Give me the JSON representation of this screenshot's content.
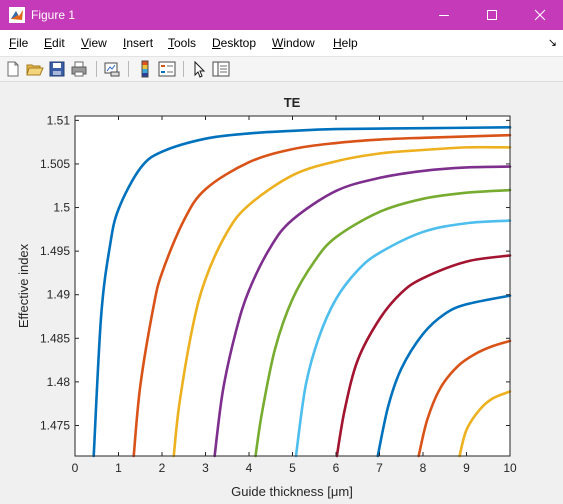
{
  "window": {
    "title": "Figure 1",
    "icon": "matlab-icon",
    "controls": [
      "minimize-icon",
      "maximize-icon",
      "close-icon"
    ]
  },
  "menu": {
    "items": [
      "File",
      "Edit",
      "View",
      "Insert",
      "Tools",
      "Desktop",
      "Window",
      "Help"
    ],
    "overflow_icon": "dock-arrow-icon"
  },
  "toolbar": {
    "icons": [
      "new-figure-icon",
      "open-file-icon",
      "save-icon",
      "print-icon",
      "link-plot-icon",
      "colorbar-icon",
      "legend-icon",
      "edit-plot-icon",
      "property-inspector-icon"
    ]
  },
  "colors": {
    "titlebar": "#c53ab9",
    "series_palette": [
      "#0072bd",
      "#d95319",
      "#edb120",
      "#7e2f8e",
      "#77ac30",
      "#4dbeee",
      "#a2142f"
    ]
  },
  "chart_data": {
    "type": "line",
    "title": "TE",
    "xlabel": "Guide thickness [μm]",
    "ylabel": "Effective index",
    "xlim": [
      0,
      10
    ],
    "ylim": [
      1.4715,
      1.5105
    ],
    "xticks": [
      0,
      1,
      2,
      3,
      4,
      5,
      6,
      7,
      8,
      9,
      10
    ],
    "xtick_labels": [
      "0",
      "1",
      "2",
      "3",
      "4",
      "5",
      "6",
      "7",
      "8",
      "9",
      "10"
    ],
    "yticks": [
      1.475,
      1.48,
      1.485,
      1.49,
      1.495,
      1.5,
      1.505,
      1.51
    ],
    "ytick_labels": [
      "1.475",
      "1.48",
      "1.485",
      "1.49",
      "1.495",
      "1.5",
      "1.505",
      "1.51"
    ],
    "grid": false,
    "box": true,
    "legend": "none",
    "series": [
      {
        "color": "#0072bd",
        "x": [
          0.43,
          0.6,
          0.8,
          1.0,
          1.5,
          2.0,
          3.0,
          4.0,
          5.0,
          6.0,
          8.0,
          10.0
        ],
        "y": [
          1.4715,
          1.4875,
          1.4955,
          1.4998,
          1.5045,
          1.5064,
          1.5079,
          1.5085,
          1.5088,
          1.509,
          1.5091,
          1.5092
        ]
      },
      {
        "color": "#d95319",
        "x": [
          1.35,
          1.5,
          1.8,
          2.0,
          2.5,
          3.0,
          4.0,
          5.0,
          6.0,
          7.0,
          8.0,
          10.0
        ],
        "y": [
          1.4715,
          1.4795,
          1.4885,
          1.4925,
          1.4985,
          1.5021,
          1.5052,
          1.5067,
          1.5074,
          1.5078,
          1.508,
          1.5083
        ]
      },
      {
        "color": "#edb120",
        "x": [
          2.27,
          2.4,
          2.7,
          3.0,
          3.5,
          4.0,
          5.0,
          6.0,
          7.0,
          8.0,
          9.0,
          10.0
        ],
        "y": [
          1.4715,
          1.4775,
          1.4862,
          1.4918,
          1.4972,
          1.5003,
          1.5037,
          1.5053,
          1.5062,
          1.5066,
          1.5069,
          1.5069
        ]
      },
      {
        "color": "#7e2f8e",
        "x": [
          3.21,
          3.4,
          3.7,
          4.0,
          4.5,
          5.0,
          6.0,
          7.0,
          8.0,
          9.0,
          10.0
        ],
        "y": [
          1.4715,
          1.479,
          1.4858,
          1.4905,
          1.4955,
          1.4986,
          1.5019,
          1.5034,
          1.5042,
          1.5046,
          1.5047
        ]
      },
      {
        "color": "#77ac30",
        "x": [
          4.15,
          4.3,
          4.6,
          5.0,
          5.5,
          6.0,
          7.0,
          8.0,
          9.0,
          10.0
        ],
        "y": [
          1.4715,
          1.4765,
          1.4838,
          1.4895,
          1.4938,
          1.4966,
          1.4995,
          1.501,
          1.5017,
          1.502
        ]
      },
      {
        "color": "#4dbeee",
        "x": [
          5.08,
          5.3,
          5.6,
          6.0,
          6.5,
          7.0,
          8.0,
          9.0,
          10.0
        ],
        "y": [
          1.4715,
          1.4795,
          1.485,
          1.4895,
          1.4928,
          1.4948,
          1.4972,
          1.4982,
          1.4985
        ]
      },
      {
        "color": "#a2142f",
        "x": [
          6.02,
          6.2,
          6.5,
          7.0,
          7.5,
          8.0,
          9.0,
          10.0
        ],
        "y": [
          1.4715,
          1.4768,
          1.4825,
          1.4872,
          1.4902,
          1.4919,
          1.4938,
          1.4945
        ]
      },
      {
        "color": "#0072bd",
        "x": [
          6.96,
          7.2,
          7.5,
          8.0,
          8.5,
          9.0,
          10.0
        ],
        "y": [
          1.4715,
          1.4772,
          1.4815,
          1.4855,
          1.4878,
          1.4889,
          1.4899
        ]
      },
      {
        "color": "#d95319",
        "x": [
          7.9,
          8.1,
          8.4,
          8.8,
          9.2,
          9.6,
          10.0
        ],
        "y": [
          1.4715,
          1.4757,
          1.4793,
          1.4818,
          1.4832,
          1.4841,
          1.4847
        ]
      },
      {
        "color": "#edb120",
        "x": [
          8.84,
          9.0,
          9.3,
          9.6,
          10.0
        ],
        "y": [
          1.4715,
          1.4745,
          1.4768,
          1.4781,
          1.4789
        ]
      }
    ]
  }
}
